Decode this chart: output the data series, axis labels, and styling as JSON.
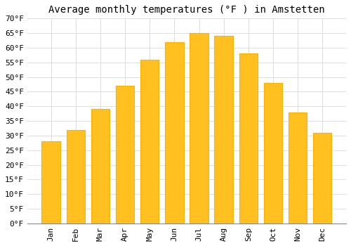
{
  "months": [
    "Jan",
    "Feb",
    "Mar",
    "Apr",
    "May",
    "Jun",
    "Jul",
    "Aug",
    "Sep",
    "Oct",
    "Nov",
    "Dec"
  ],
  "values": [
    28,
    32,
    39,
    47,
    56,
    62,
    65,
    64,
    58,
    48,
    38,
    31
  ],
  "bar_color": "#FFC020",
  "bar_edge_color": "#FFB000",
  "title": "Average monthly temperatures (°F ) in Amstetten",
  "ylim": [
    0,
    70
  ],
  "yticks": [
    0,
    5,
    10,
    15,
    20,
    25,
    30,
    35,
    40,
    45,
    50,
    55,
    60,
    65,
    70
  ],
  "background_color": "#ffffff",
  "grid_color": "#dddddd",
  "title_fontsize": 10,
  "tick_fontsize": 8,
  "font_family": "monospace"
}
